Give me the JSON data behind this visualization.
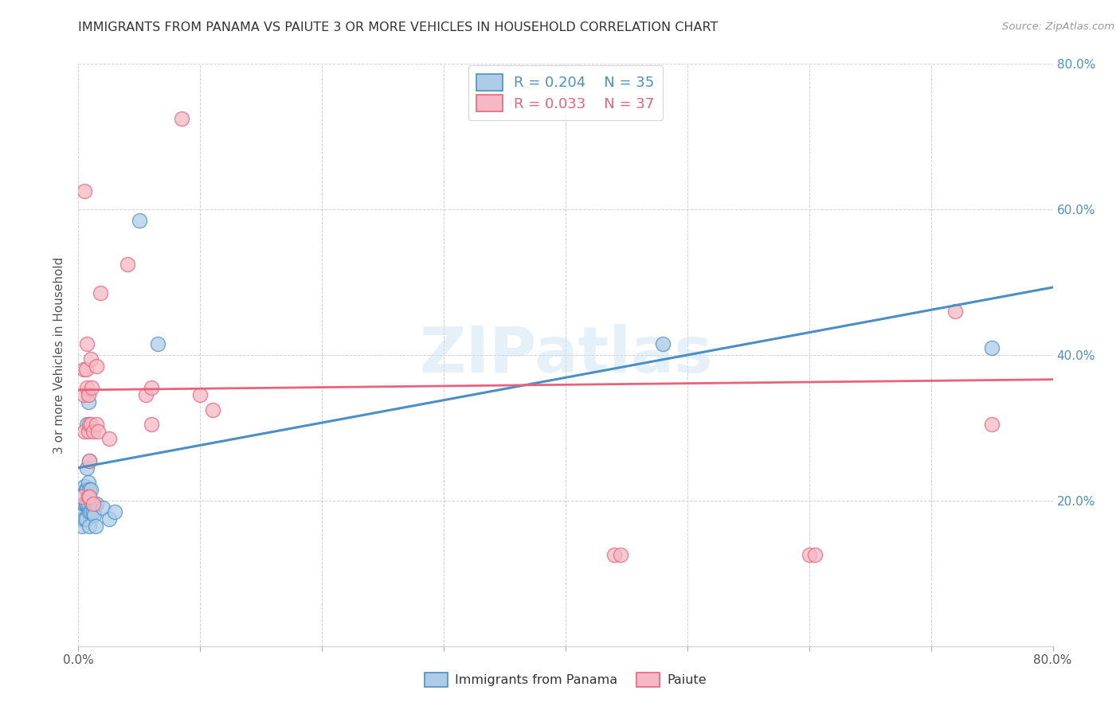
{
  "title": "IMMIGRANTS FROM PANAMA VS PAIUTE 3 OR MORE VEHICLES IN HOUSEHOLD CORRELATION CHART",
  "source": "Source: ZipAtlas.com",
  "ylabel": "3 or more Vehicles in Household",
  "watermark": "ZIPatlas",
  "xlim": [
    0.0,
    0.8
  ],
  "ylim": [
    0.0,
    0.8
  ],
  "series_blue_label": "Immigrants from Panama",
  "series_pink_label": "Paiute",
  "blue_color": "#aecce8",
  "pink_color": "#f5b8c4",
  "blue_line_color": "#4a90c4",
  "pink_line_color": "#e8637a",
  "trendline_dashed_color": "#aacce8",
  "blue_points": [
    [
      0.002,
      0.175
    ],
    [
      0.003,
      0.165
    ],
    [
      0.003,
      0.185
    ],
    [
      0.004,
      0.195
    ],
    [
      0.005,
      0.175
    ],
    [
      0.005,
      0.195
    ],
    [
      0.005,
      0.22
    ],
    [
      0.006,
      0.175
    ],
    [
      0.006,
      0.195
    ],
    [
      0.006,
      0.215
    ],
    [
      0.007,
      0.195
    ],
    [
      0.007,
      0.215
    ],
    [
      0.007,
      0.245
    ],
    [
      0.007,
      0.305
    ],
    [
      0.008,
      0.195
    ],
    [
      0.008,
      0.225
    ],
    [
      0.008,
      0.335
    ],
    [
      0.009,
      0.165
    ],
    [
      0.009,
      0.185
    ],
    [
      0.009,
      0.215
    ],
    [
      0.009,
      0.255
    ],
    [
      0.01,
      0.185
    ],
    [
      0.01,
      0.215
    ],
    [
      0.011,
      0.195
    ],
    [
      0.012,
      0.185
    ],
    [
      0.013,
      0.18
    ],
    [
      0.014,
      0.165
    ],
    [
      0.015,
      0.195
    ],
    [
      0.02,
      0.19
    ],
    [
      0.025,
      0.175
    ],
    [
      0.03,
      0.185
    ],
    [
      0.05,
      0.585
    ],
    [
      0.065,
      0.415
    ],
    [
      0.48,
      0.415
    ],
    [
      0.75,
      0.41
    ]
  ],
  "pink_points": [
    [
      0.003,
      0.205
    ],
    [
      0.004,
      0.345
    ],
    [
      0.004,
      0.38
    ],
    [
      0.005,
      0.625
    ],
    [
      0.005,
      0.295
    ],
    [
      0.006,
      0.38
    ],
    [
      0.007,
      0.415
    ],
    [
      0.007,
      0.355
    ],
    [
      0.008,
      0.205
    ],
    [
      0.008,
      0.295
    ],
    [
      0.008,
      0.345
    ],
    [
      0.009,
      0.255
    ],
    [
      0.009,
      0.205
    ],
    [
      0.009,
      0.305
    ],
    [
      0.01,
      0.395
    ],
    [
      0.01,
      0.305
    ],
    [
      0.011,
      0.355
    ],
    [
      0.012,
      0.195
    ],
    [
      0.012,
      0.295
    ],
    [
      0.015,
      0.385
    ],
    [
      0.015,
      0.305
    ],
    [
      0.016,
      0.295
    ],
    [
      0.018,
      0.485
    ],
    [
      0.025,
      0.285
    ],
    [
      0.04,
      0.525
    ],
    [
      0.055,
      0.345
    ],
    [
      0.06,
      0.355
    ],
    [
      0.06,
      0.305
    ],
    [
      0.085,
      0.725
    ],
    [
      0.1,
      0.345
    ],
    [
      0.11,
      0.325
    ],
    [
      0.44,
      0.125
    ],
    [
      0.445,
      0.125
    ],
    [
      0.6,
      0.125
    ],
    [
      0.605,
      0.125
    ],
    [
      0.75,
      0.305
    ],
    [
      0.72,
      0.46
    ]
  ]
}
